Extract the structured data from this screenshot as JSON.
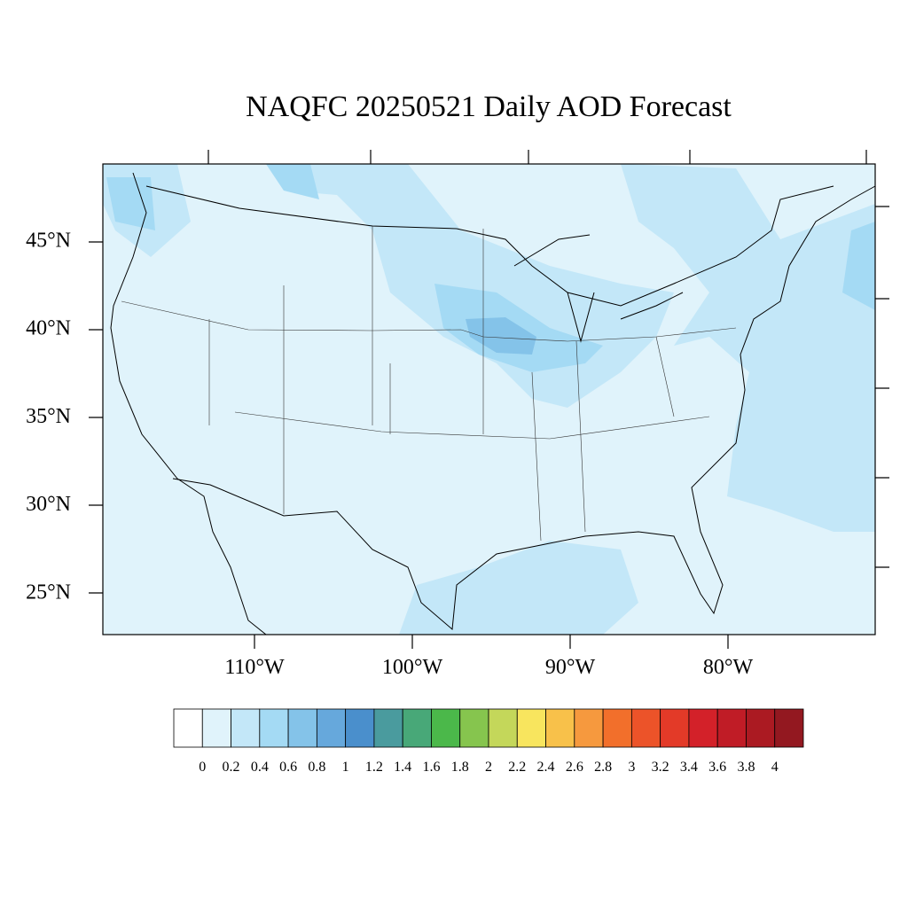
{
  "title": "NAQFC 20250521 Daily AOD Forecast",
  "lat_labels": [
    "45°N",
    "40°N",
    "35°N",
    "30°N",
    "25°N"
  ],
  "lon_labels": [
    "110°W",
    "100°W",
    "90°W",
    "80°W"
  ],
  "colorbar": {
    "labels": [
      0,
      0.2,
      0.4,
      0.6,
      0.8,
      1,
      1.2,
      1.4,
      1.6,
      1.8,
      2,
      2.2,
      2.4,
      2.6,
      2.8,
      3,
      3.2,
      3.4,
      3.6,
      3.8,
      4
    ],
    "colors": [
      "#ffffff",
      "#e0f3fb",
      "#c3e7f8",
      "#a4daf4",
      "#84c3e9",
      "#66a8dc",
      "#4a8fcc",
      "#4a9b9e",
      "#48a878",
      "#4bb84a",
      "#86c54e",
      "#c4d75a",
      "#f8e55e",
      "#f8c14a",
      "#f6993e",
      "#f26f2b",
      "#ec5329",
      "#e33a28",
      "#d32129",
      "#c01c26",
      "#ab1a22",
      "#931820"
    ]
  }
}
